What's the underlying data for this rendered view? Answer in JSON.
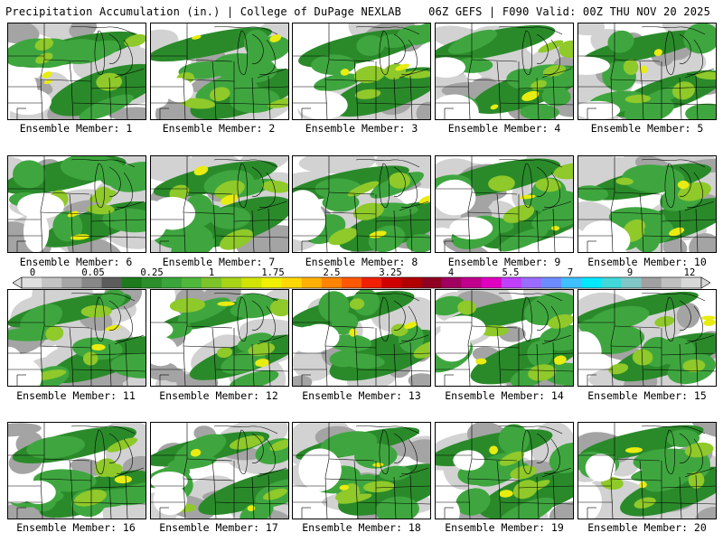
{
  "header": {
    "title_left": "Precipitation Accumulation (in.) | College of DuPage NEXLAB",
    "title_right": "06Z GEFS | F090 Valid: 00Z THU NOV 20 2025"
  },
  "colorbar": {
    "labels": [
      "0",
      "0.05",
      "0.25",
      "1",
      "1.75",
      "2.5",
      "3.25",
      "4",
      "5.5",
      "7",
      "9",
      "12"
    ],
    "colors": [
      "#e0e0e0",
      "#c4c4c4",
      "#a6a6a6",
      "#888888",
      "#5c5c5c",
      "#1d7a1d",
      "#2c8f2c",
      "#3aa53a",
      "#4fb83b",
      "#7cc42a",
      "#a8d418",
      "#d0e400",
      "#f0f000",
      "#ffd800",
      "#ffb000",
      "#ff8400",
      "#ff5800",
      "#f02000",
      "#d00000",
      "#b00000",
      "#900020",
      "#a00060",
      "#c0008c",
      "#e000c0",
      "#c040ff",
      "#9a6cff",
      "#6c8cff",
      "#40c0ff",
      "#00e8ff",
      "#40d8d8",
      "#80c8c8",
      "#a0a0a0",
      "#c0c0c0",
      "#d8d8d8"
    ]
  },
  "map_colors": {
    "light_gray": "#d2d2d2",
    "mid_gray": "#a4a4a4",
    "dark_green": "#2a8a2a",
    "green": "#3fa63f",
    "light_green": "#8fc92a",
    "yellow": "#e8ec10",
    "boundary": "#000000"
  },
  "members": [
    {
      "label": "Ensemble Member: 1"
    },
    {
      "label": "Ensemble Member: 2"
    },
    {
      "label": "Ensemble Member: 3"
    },
    {
      "label": "Ensemble Member: 4"
    },
    {
      "label": "Ensemble Member: 5"
    },
    {
      "label": "Ensemble Member: 6"
    },
    {
      "label": "Ensemble Member: 7"
    },
    {
      "label": "Ensemble Member: 8"
    },
    {
      "label": "Ensemble Member: 9"
    },
    {
      "label": "Ensemble Member: 10"
    },
    {
      "label": "Ensemble Member: 11"
    },
    {
      "label": "Ensemble Member: 12"
    },
    {
      "label": "Ensemble Member: 13"
    },
    {
      "label": "Ensemble Member: 14"
    },
    {
      "label": "Ensemble Member: 15"
    },
    {
      "label": "Ensemble Member: 16"
    },
    {
      "label": "Ensemble Member: 17"
    },
    {
      "label": "Ensemble Member: 18"
    },
    {
      "label": "Ensemble Member: 19"
    },
    {
      "label": "Ensemble Member: 20"
    }
  ]
}
